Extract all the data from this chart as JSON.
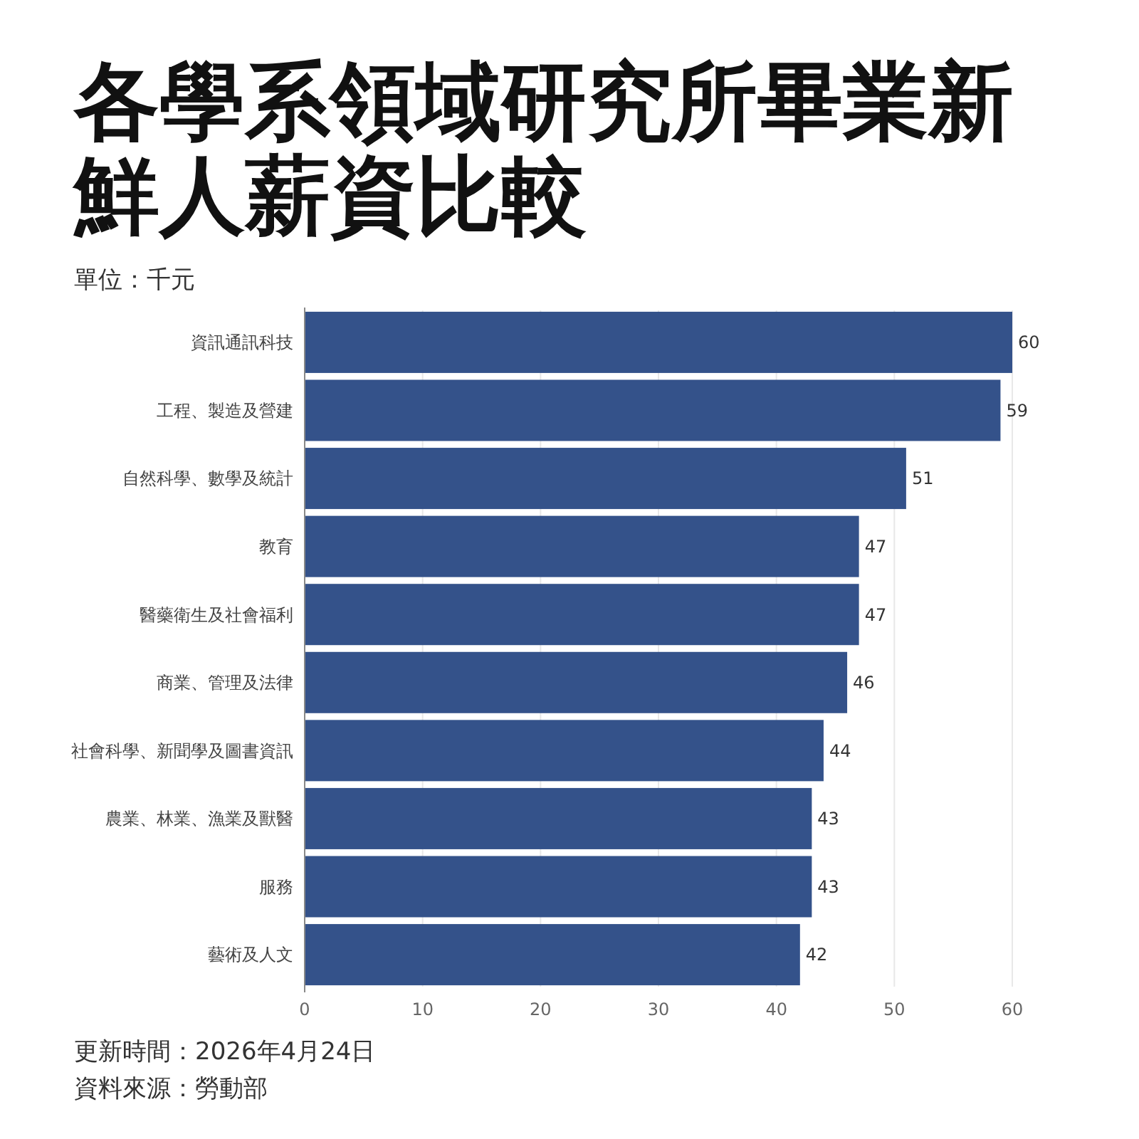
{
  "chart_data": {
    "type": "bar",
    "orientation": "horizontal",
    "title": "各學系領域研究所畢業新鮮人薪資比較",
    "subtitle": "單位：千元",
    "categories": [
      "資訊通訊科技",
      "工程、製造及營建",
      "自然科學、數學及統計",
      "教育",
      "醫藥衛生及社會福利",
      "商業、管理及法律",
      "社會科學、新聞學及圖書資訊",
      "農業、林業、漁業及獸醫",
      "服務",
      "藝術及人文"
    ],
    "values": [
      60,
      59,
      51,
      47,
      47,
      46,
      44,
      43,
      43,
      42
    ],
    "color": "#34528a",
    "xlim": [
      0,
      60
    ],
    "xticks": [
      0,
      10,
      20,
      30,
      40,
      50,
      60
    ],
    "grid": "x",
    "data_labels": true,
    "annotations": [
      "更新時間：2026年4月24日",
      "資料來源：勞動部"
    ]
  }
}
